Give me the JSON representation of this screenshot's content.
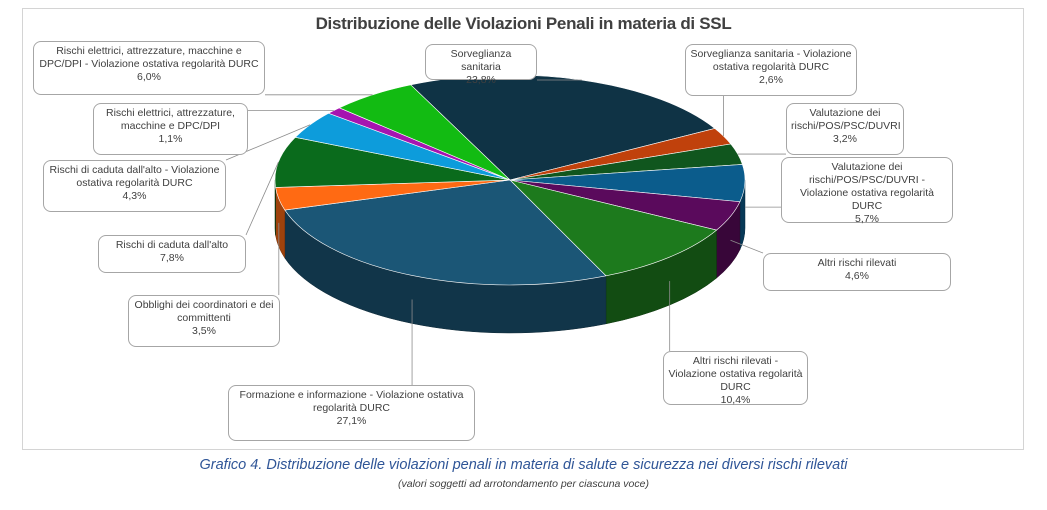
{
  "chart_data": {
    "type": "pie",
    "title": "Distribuzione delle Violazioni Penali in materia di SSL",
    "slices": [
      {
        "label": "Sorveglianza sanitaria",
        "value": 23.8,
        "value_label": "23,8%",
        "color": "#0f3345"
      },
      {
        "label": "Sorveglianza sanitaria - Violazione ostativa regolarità DURC",
        "value": 2.6,
        "value_label": "2,6%",
        "color": "#c0410c"
      },
      {
        "label": "Valutazione dei rischi/POS/PSC/DUVRI",
        "value": 3.2,
        "value_label": "3,2%",
        "color": "#10561e"
      },
      {
        "label": "Valutazione dei rischi/POS/PSC/DUVRI - Violazione ostativa regolarità DURC",
        "value": 5.7,
        "value_label": "5,7%",
        "color": "#0b5c8c"
      },
      {
        "label": "Altri rischi rilevati",
        "value": 4.6,
        "value_label": "4,6%",
        "color": "#5a0a5c"
      },
      {
        "label": "Altri rischi rilevati - Violazione ostativa regolarità DURC",
        "value": 10.4,
        "value_label": "10,4%",
        "color": "#1d7a1d"
      },
      {
        "label": "Formazione e informazione - Violazione ostativa regolarità DURC",
        "value": 27.1,
        "value_label": "27,1%",
        "color": "#1b5676"
      },
      {
        "label": "Obblighi dei coordinatori e dei committenti",
        "value": 3.5,
        "value_label": "3,5%",
        "color": "#ff6a13"
      },
      {
        "label": "Rischi di caduta dall'alto",
        "value": 7.8,
        "value_label": "7,8%",
        "color": "#0a6b1c"
      },
      {
        "label": "Rischi di caduta dall'alto - Violazione ostativa regolarità DURC",
        "value": 4.3,
        "value_label": "4,3%",
        "color": "#0d9cdb"
      },
      {
        "label": "Rischi elettrici, attrezzature, macchine e DPC/DPI",
        "value": 1.1,
        "value_label": "1,1%",
        "color": "#a614b0"
      },
      {
        "label": "Rischi elettrici, attrezzature, macchine e DPC/DPI - Violazione ostativa regolarità DURC",
        "value": 6.0,
        "value_label": "6,0%",
        "color": "#12bb12"
      }
    ]
  },
  "caption": "Grafico 4. Distribuzione delle violazioni penali in materia di salute e sicurezza nei diversi rischi rilevati",
  "caption_note": "(valori soggetti ad arrotondamento per ciascuna voce)"
}
